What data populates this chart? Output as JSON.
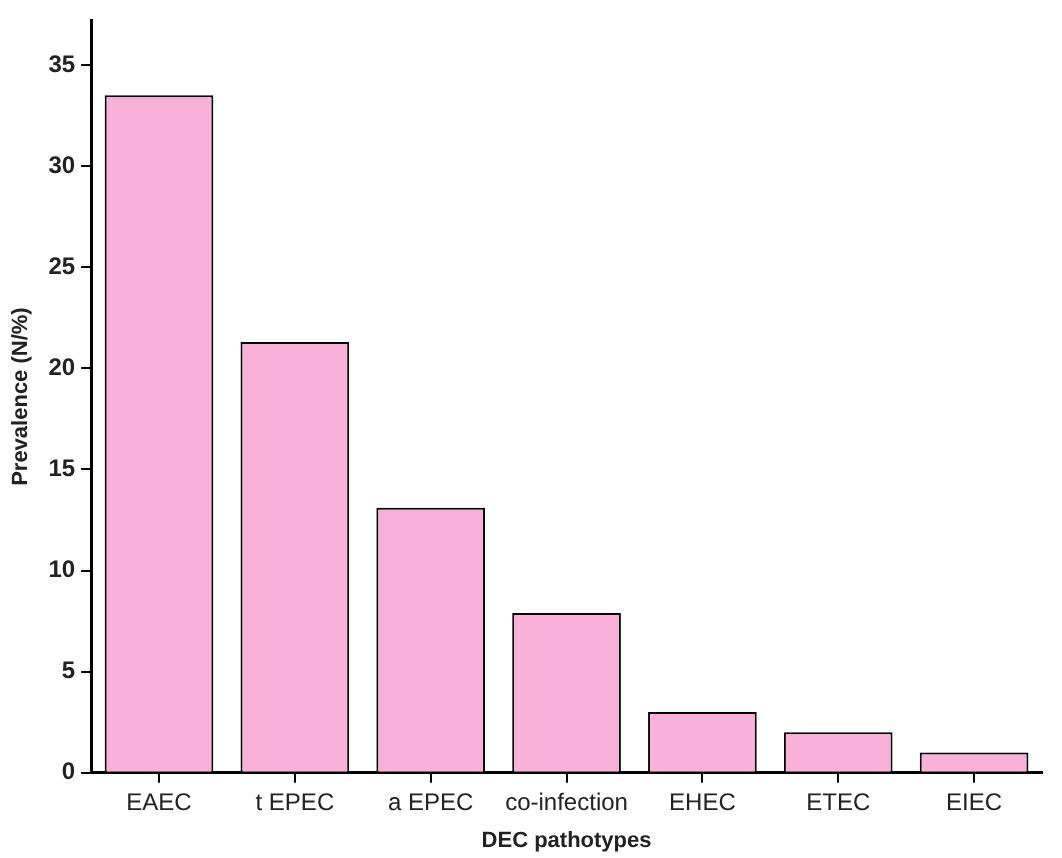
{
  "chart_data": {
    "type": "bar",
    "xlabel": "DEC pathotypes",
    "ylabel": "Prevalence (N/%)",
    "categories": [
      "EAEC",
      "t EPEC",
      "a EPEC",
      "co-infection",
      "EHEC",
      "ETEC",
      "EIEC"
    ],
    "values": [
      33.5,
      21.3,
      13.1,
      7.9,
      3.0,
      2.0,
      1.0
    ],
    "color": "#f9b0d9",
    "ylim": [
      0,
      37.2
    ],
    "yticks": [
      0,
      5,
      10,
      15,
      20,
      25,
      30,
      35
    ],
    "grid": false,
    "legend": false
  }
}
